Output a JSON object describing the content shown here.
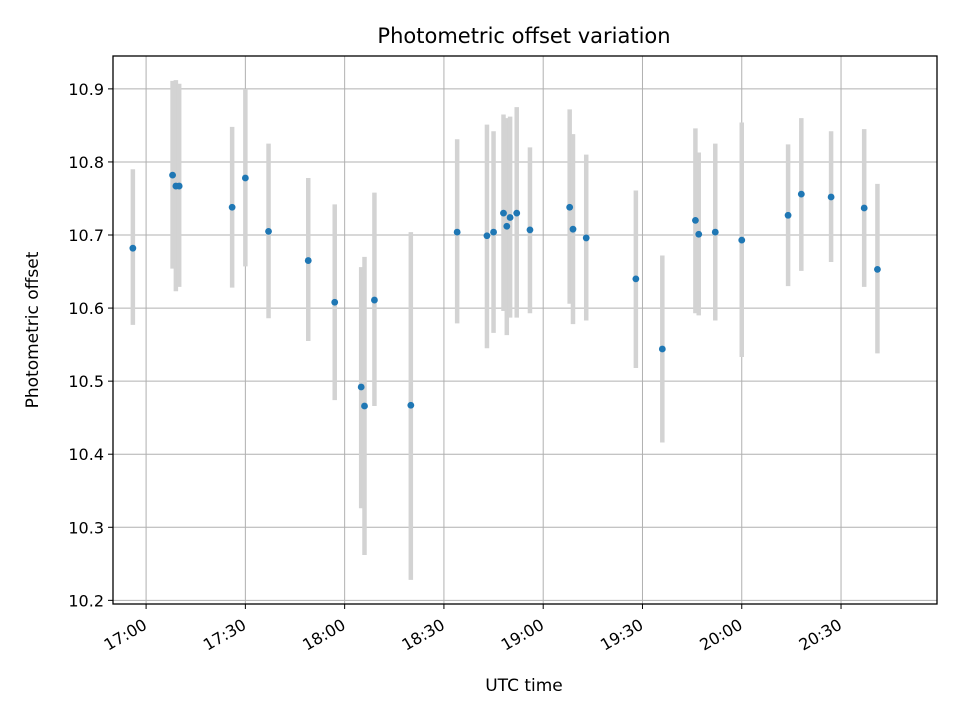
{
  "chart_data": {
    "type": "scatter",
    "title": "Photometric offset variation",
    "xlabel": "UTC time",
    "ylabel": "Photometric offset",
    "x_unit": "UTC HH:MM",
    "xlim": [
      "16:50",
      "20:59"
    ],
    "ylim": [
      10.195,
      10.945
    ],
    "grid": true,
    "x_ticks": [
      "17:00",
      "17:30",
      "18:00",
      "18:30",
      "19:00",
      "19:30",
      "20:00",
      "20:30"
    ],
    "y_ticks": [
      "10.2",
      "10.3",
      "10.4",
      "10.5",
      "10.6",
      "10.7",
      "10.8",
      "10.9"
    ],
    "marker_color": "#1f77b4",
    "errorbar_color": "#d3d3d3",
    "series": [
      {
        "points": [
          {
            "x": "16:56",
            "y": 10.682,
            "lo": 10.577,
            "hi": 10.79
          },
          {
            "x": "17:08",
            "y": 10.782,
            "lo": 10.654,
            "hi": 10.911
          },
          {
            "x": "17:09",
            "y": 10.767,
            "lo": 10.623,
            "hi": 10.912
          },
          {
            "x": "17:10",
            "y": 10.767,
            "lo": 10.629,
            "hi": 10.907
          },
          {
            "x": "17:26",
            "y": 10.738,
            "lo": 10.628,
            "hi": 10.848
          },
          {
            "x": "17:30",
            "y": 10.778,
            "lo": 10.657,
            "hi": 10.9
          },
          {
            "x": "17:37",
            "y": 10.705,
            "lo": 10.586,
            "hi": 10.825
          },
          {
            "x": "17:49",
            "y": 10.665,
            "lo": 10.555,
            "hi": 10.778
          },
          {
            "x": "17:57",
            "y": 10.608,
            "lo": 10.474,
            "hi": 10.742
          },
          {
            "x": "18:05",
            "y": 10.492,
            "lo": 10.326,
            "hi": 10.656
          },
          {
            "x": "18:06",
            "y": 10.466,
            "lo": 10.262,
            "hi": 10.67
          },
          {
            "x": "18:09",
            "y": 10.611,
            "lo": 10.466,
            "hi": 10.758
          },
          {
            "x": "18:20",
            "y": 10.467,
            "lo": 10.228,
            "hi": 10.704
          },
          {
            "x": "18:34",
            "y": 10.704,
            "lo": 10.579,
            "hi": 10.831
          },
          {
            "x": "18:43",
            "y": 10.699,
            "lo": 10.545,
            "hi": 10.851
          },
          {
            "x": "18:45",
            "y": 10.704,
            "lo": 10.566,
            "hi": 10.842
          },
          {
            "x": "18:48",
            "y": 10.73,
            "lo": 10.596,
            "hi": 10.865
          },
          {
            "x": "18:49",
            "y": 10.712,
            "lo": 10.563,
            "hi": 10.86
          },
          {
            "x": "18:50",
            "y": 10.724,
            "lo": 10.587,
            "hi": 10.862
          },
          {
            "x": "18:52",
            "y": 10.73,
            "lo": 10.587,
            "hi": 10.875
          },
          {
            "x": "18:56",
            "y": 10.707,
            "lo": 10.593,
            "hi": 10.82
          },
          {
            "x": "19:08",
            "y": 10.738,
            "lo": 10.606,
            "hi": 10.872
          },
          {
            "x": "19:09",
            "y": 10.708,
            "lo": 10.578,
            "hi": 10.838
          },
          {
            "x": "19:13",
            "y": 10.696,
            "lo": 10.583,
            "hi": 10.81
          },
          {
            "x": "19:28",
            "y": 10.64,
            "lo": 10.518,
            "hi": 10.761
          },
          {
            "x": "19:36",
            "y": 10.544,
            "lo": 10.416,
            "hi": 10.672
          },
          {
            "x": "19:46",
            "y": 10.72,
            "lo": 10.593,
            "hi": 10.846
          },
          {
            "x": "19:47",
            "y": 10.701,
            "lo": 10.59,
            "hi": 10.813
          },
          {
            "x": "19:52",
            "y": 10.704,
            "lo": 10.583,
            "hi": 10.825
          },
          {
            "x": "20:00",
            "y": 10.693,
            "lo": 10.533,
            "hi": 10.854
          },
          {
            "x": "20:14",
            "y": 10.727,
            "lo": 10.63,
            "hi": 10.824
          },
          {
            "x": "20:18",
            "y": 10.756,
            "lo": 10.651,
            "hi": 10.86
          },
          {
            "x": "20:27",
            "y": 10.752,
            "lo": 10.663,
            "hi": 10.842
          },
          {
            "x": "20:37",
            "y": 10.737,
            "lo": 10.629,
            "hi": 10.845
          },
          {
            "x": "20:41",
            "y": 10.653,
            "lo": 10.538,
            "hi": 10.77
          }
        ]
      }
    ]
  }
}
